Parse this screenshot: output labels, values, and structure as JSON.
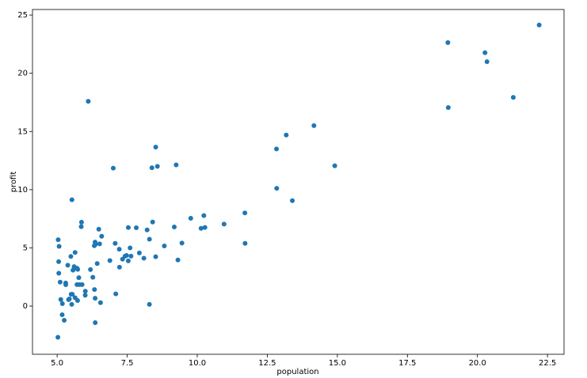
{
  "chart_data": {
    "type": "scatter",
    "x_label": "population",
    "y_label": "profit",
    "color": "#1f77b4",
    "xlim": [
      4.12,
      23.09
    ],
    "ylim": [
      -4.14,
      25.48
    ],
    "xticks": [
      {
        "value": 5,
        "label": "5.0"
      },
      {
        "value": 7.5,
        "label": "7.5"
      },
      {
        "value": 10,
        "label": "10.0"
      },
      {
        "value": 12.5,
        "label": "12.5"
      },
      {
        "value": 15,
        "label": "15.0"
      },
      {
        "value": 17.5,
        "label": "17.5"
      },
      {
        "value": 20,
        "label": "20.0"
      },
      {
        "value": 22.5,
        "label": "22.5"
      }
    ],
    "yticks": [
      0,
      5,
      10,
      15,
      20,
      25
    ],
    "x": [
      6.1101,
      5.5277,
      8.5186,
      7.0032,
      5.8598,
      8.3829,
      7.4764,
      8.5781,
      6.4862,
      5.0546,
      5.7107,
      14.164,
      5.734,
      8.4084,
      5.6407,
      5.3794,
      6.3654,
      5.1301,
      6.4296,
      7.0708,
      6.1891,
      20.27,
      5.4901,
      6.3261,
      5.5649,
      18.945,
      12.828,
      10.957,
      13.176,
      22.203,
      5.2524,
      6.5894,
      9.2482,
      5.8918,
      8.2111,
      7.9334,
      8.0959,
      5.6063,
      12.836,
      6.3534,
      5.4069,
      6.8825,
      11.708,
      5.7737,
      7.8247,
      7.0931,
      5.0702,
      5.8014,
      11.7,
      5.5416,
      7.5402,
      5.3077,
      7.4239,
      7.6031,
      6.3328,
      6.3589,
      6.2742,
      5.6397,
      9.3102,
      9.4536,
      8.8254,
      5.1793,
      21.279,
      14.908,
      18.959,
      7.2182,
      8.2951,
      10.236,
      5.4994,
      20.341,
      10.136,
      7.3345,
      6.0062,
      7.2259,
      5.0269,
      6.5479,
      7.5386,
      5.0365,
      10.274,
      5.1077,
      5.7292,
      5.1884,
      6.3557,
      9.7687,
      6.5159,
      8.5172,
      9.1802,
      6.002,
      5.5204,
      5.0594,
      5.7077,
      7.6366,
      5.8707,
      5.3054,
      8.2934,
      13.394,
      5.4369
    ],
    "y": [
      17.592,
      9.1302,
      13.662,
      11.854,
      6.8233,
      11.886,
      4.3483,
      12,
      6.5987,
      3.8166,
      3.2522,
      15.505,
      3.1551,
      7.2258,
      0.71618,
      3.5129,
      5.3048,
      0.56077,
      3.6518,
      5.3893,
      3.1386,
      21.767,
      4.263,
      5.1875,
      3.0825,
      22.638,
      13.501,
      7.0467,
      14.692,
      24.147,
      -1.22,
      5.9966,
      12.134,
      1.8495,
      6.5426,
      4.5623,
      4.1164,
      3.3928,
      10.117,
      5.4974,
      0.55657,
      3.9115,
      5.3854,
      2.4406,
      6.7318,
      1.0463,
      5.1337,
      1.844,
      8.0043,
      1.0179,
      6.7504,
      1.8396,
      4.2885,
      4.9981,
      1.4233,
      -1.4211,
      2.4756,
      4.6042,
      3.9624,
      5.4141,
      5.1694,
      -0.74279,
      17.929,
      12.054,
      17.054,
      4.8852,
      5.7442,
      7.7754,
      1.0173,
      20.992,
      6.6799,
      4.0259,
      1.2784,
      3.3411,
      -2.6807,
      0.29678,
      3.8845,
      5.7014,
      6.7526,
      2.0576,
      0.47953,
      0.20421,
      0.67861,
      7.5435,
      5.3436,
      4.2415,
      6.7981,
      0.92695,
      0.152,
      2.8214,
      1.8451,
      4.2959,
      7.2029,
      1.9869,
      0.14454,
      9.0551,
      0.61705
    ]
  }
}
